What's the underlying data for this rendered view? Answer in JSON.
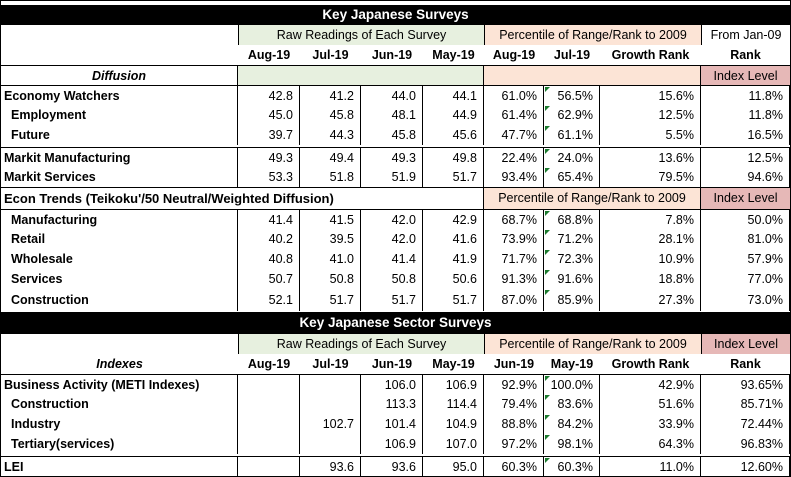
{
  "title1": "Key Japanese Surveys",
  "title2": "Key Japanese Sector Surveys",
  "hdr": {
    "raw": "Raw Readings of Each Survey",
    "pct": "Percentile of Range/Rank to 2009",
    "from": "From Jan-09",
    "growth_rank": "Growth Rank",
    "rank": "Rank",
    "index_level": "Index Level"
  },
  "cols1": [
    "Aug-19",
    "Jul-19",
    "Jun-19",
    "May-19",
    "Aug-19",
    "Jul-19"
  ],
  "cols2": [
    "Aug-19",
    "Jul-19",
    "Jun-19",
    "May-19",
    "Jun-19",
    "May-19"
  ],
  "diffusion": "Diffusion",
  "indexes": "Indexes",
  "econ_trends": "Econ Trends (Teikoku'/50 Neutral/Weighted Diffusion)",
  "s1": [
    {
      "label": "Economy Watchers",
      "v": [
        "42.8",
        "41.2",
        "44.0",
        "44.1",
        "61.0%",
        "56.5%",
        "15.6%",
        "11.8%"
      ]
    },
    {
      "label": "Employment",
      "v": [
        "45.0",
        "45.8",
        "48.1",
        "44.9",
        "61.4%",
        "62.9%",
        "12.5%",
        "11.8%"
      ]
    },
    {
      "label": "Future",
      "v": [
        "39.7",
        "44.3",
        "45.8",
        "45.6",
        "47.7%",
        "61.1%",
        "5.5%",
        "16.5%"
      ]
    },
    {
      "label": "Markit Manufacturing",
      "v": [
        "49.3",
        "49.4",
        "49.3",
        "49.8",
        "22.4%",
        "24.0%",
        "13.6%",
        "12.5%"
      ]
    },
    {
      "label": "Markit Services",
      "v": [
        "53.3",
        "51.8",
        "51.9",
        "51.7",
        "93.4%",
        "65.4%",
        "79.5%",
        "94.6%"
      ]
    }
  ],
  "s2": [
    {
      "label": "Manufacturing",
      "v": [
        "41.4",
        "41.5",
        "42.0",
        "42.9",
        "68.7%",
        "68.8%",
        "7.8%",
        "50.0%"
      ]
    },
    {
      "label": "Retail",
      "v": [
        "40.2",
        "39.5",
        "42.0",
        "41.6",
        "73.9%",
        "71.2%",
        "28.1%",
        "81.0%"
      ]
    },
    {
      "label": "Wholesale",
      "v": [
        "40.8",
        "41.0",
        "41.4",
        "41.9",
        "71.7%",
        "72.3%",
        "10.9%",
        "57.9%"
      ]
    },
    {
      "label": "Services",
      "v": [
        "50.7",
        "50.8",
        "50.8",
        "50.6",
        "91.3%",
        "91.6%",
        "18.8%",
        "77.0%"
      ]
    },
    {
      "label": "Construction",
      "v": [
        "52.1",
        "51.7",
        "51.7",
        "51.7",
        "87.0%",
        "85.9%",
        "27.3%",
        "73.0%"
      ]
    }
  ],
  "s3": [
    {
      "label": "Business Activity (METI Indexes)",
      "v": [
        "",
        "",
        "106.0",
        "106.9",
        "92.9%",
        "100.0%",
        "42.9%",
        "93.65%"
      ]
    },
    {
      "label": "Construction",
      "v": [
        "",
        "",
        "113.3",
        "114.4",
        "79.4%",
        "83.6%",
        "51.6%",
        "85.71%"
      ]
    },
    {
      "label": "Industry",
      "v": [
        "",
        "102.7",
        "101.4",
        "104.9",
        "88.8%",
        "84.2%",
        "33.9%",
        "72.44%"
      ]
    },
    {
      "label": "Tertiary(services)",
      "v": [
        "",
        "",
        "106.9",
        "107.0",
        "97.2%",
        "98.1%",
        "64.3%",
        "96.83%"
      ]
    },
    {
      "label": "LEI",
      "v": [
        "",
        "93.6",
        "93.6",
        "95.0",
        "60.3%",
        "60.3%",
        "11.0%",
        "12.60%"
      ]
    }
  ]
}
